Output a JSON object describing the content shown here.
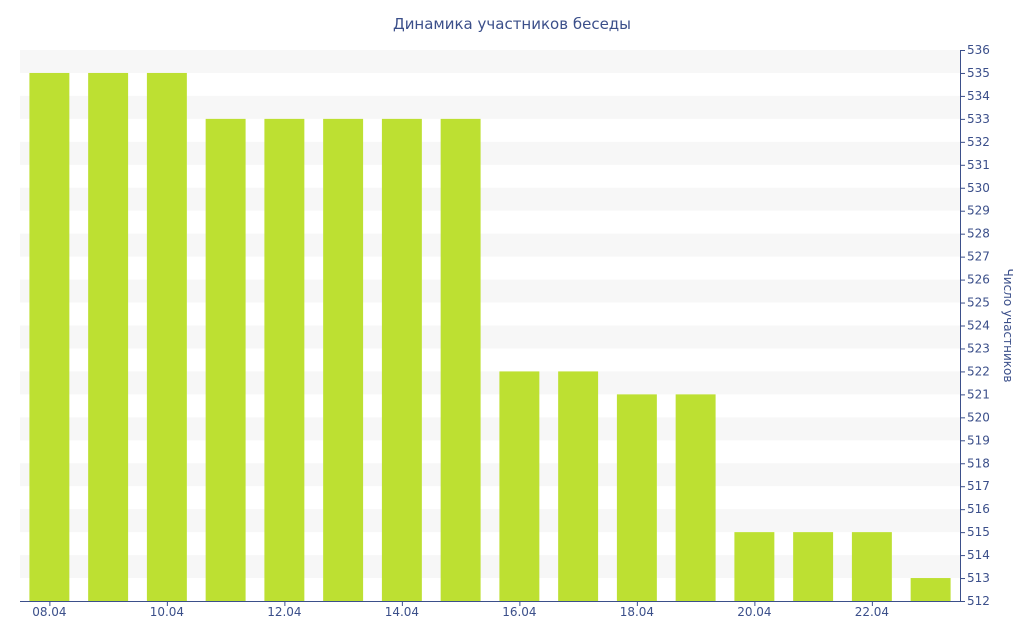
{
  "chart_data": {
    "type": "bar",
    "title": "Динамика участников беседы",
    "xlabel": "",
    "ylabel": "Число участников",
    "categories": [
      "08.04",
      "09.04",
      "10.04",
      "11.04",
      "12.04",
      "13.04",
      "14.04",
      "15.04",
      "16.04",
      "17.04",
      "18.04",
      "19.04",
      "20.04",
      "21.04",
      "22.04",
      "23.04"
    ],
    "x_tick_labels": [
      "08.04",
      "10.04",
      "12.04",
      "14.04",
      "16.04",
      "18.04",
      "20.04",
      "22.04"
    ],
    "values": [
      535,
      535,
      535,
      533,
      533,
      533,
      533,
      533,
      522,
      522,
      521,
      521,
      515,
      515,
      515,
      513
    ],
    "ylim": [
      512,
      536
    ],
    "y_tick_step": 1,
    "y_axis_side": "right",
    "grid": "alternating horizontal bands",
    "legend": "none",
    "colors": {
      "bar": "#bde032",
      "band": "#f7f7f7",
      "axis": "#3b4f8a",
      "text": "#3b4f8a"
    }
  }
}
